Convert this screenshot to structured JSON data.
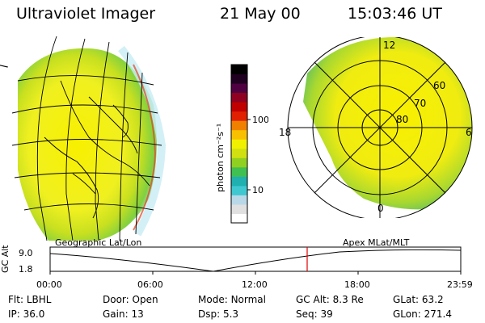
{
  "header": {
    "instrument": "Ultraviolet Imager",
    "date": "21 May 00",
    "time": "15:03:46 UT"
  },
  "colorbar": {
    "unit_label": "photon cm⁻²s⁻¹",
    "ticks": [
      "100",
      "10"
    ],
    "colors": [
      "#ffffff",
      "#e0e0e0",
      "#b8d8e8",
      "#40c8d0",
      "#20b0b0",
      "#40c050",
      "#90d020",
      "#d0e010",
      "#f0f000",
      "#f8c000",
      "#f08000",
      "#e02000",
      "#c00000",
      "#900020",
      "#500040",
      "#200020",
      "#000000"
    ]
  },
  "left_map": {
    "label": "Geographic Lat/Lon"
  },
  "right_map": {
    "label": "Apex MLat/MLT",
    "mlt_labels": {
      "top": "12",
      "left": "18",
      "right": "6",
      "bottom": "0"
    },
    "lat_labels": [
      "60",
      "70",
      "80"
    ]
  },
  "timeline": {
    "y_axis_label": "GC Alt",
    "y_ticks": [
      "9.0",
      "1.8"
    ],
    "x_ticks": [
      "00:00",
      "06:00",
      "12:00",
      "18:00",
      "23:59"
    ],
    "marker_color": "#e00000"
  },
  "status": {
    "row1": [
      {
        "label": "Flt:",
        "value": "LBHL"
      },
      {
        "label": "Door:",
        "value": "Open"
      },
      {
        "label": "Mode:",
        "value": "Normal"
      },
      {
        "label": "GC Alt:",
        "value": "8.3 Re"
      },
      {
        "label": "GLat:",
        "value": "63.2"
      }
    ],
    "row2": [
      {
        "label": "IP:",
        "value": "36.0"
      },
      {
        "label": "Gain:",
        "value": "13"
      },
      {
        "label": "Dsp:",
        "value": "5.3"
      },
      {
        "label": "Seq:",
        "value": "39"
      },
      {
        "label": "GLon:",
        "value": "271.4"
      }
    ]
  }
}
